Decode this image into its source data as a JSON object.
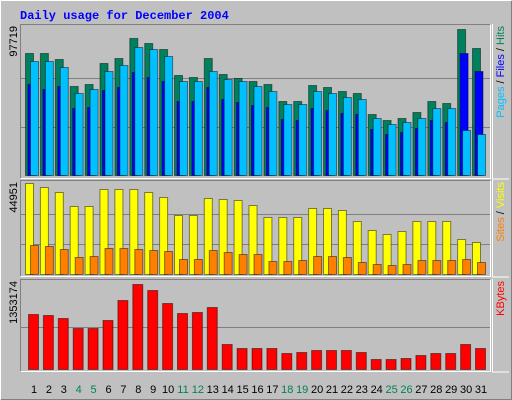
{
  "chart_data": [
    {
      "type": "bar",
      "title": "Daily usage for December 2004",
      "legend_separator": " / ",
      "ylim": [
        0,
        97719
      ],
      "yticks": [
        97719
      ],
      "gridlines": [
        32573,
        65146
      ],
      "series": [
        {
          "name": "Hits",
          "color": "#00805c",
          "values": [
            81877,
            81877,
            77915,
            60087,
            61408,
            75274,
            78576,
            91782,
            88481,
            84519,
            67351,
            66030,
            78576,
            68011,
            65370,
            63389,
            61408,
            50183,
            50183,
            60748,
            59427,
            56786,
            55465,
            40939,
            36977,
            38297,
            42259,
            50183,
            48202,
            97719,
            85179
          ]
        },
        {
          "name": "Files",
          "color": "#0000ff",
          "values": [
            61000,
            58000,
            60000,
            45000,
            46000,
            57000,
            59000,
            69000,
            66000,
            63000,
            50000,
            50000,
            59000,
            51000,
            49000,
            47000,
            46000,
            38000,
            37000,
            45000,
            44000,
            42000,
            41000,
            31000,
            28000,
            29000,
            32000,
            37000,
            36000,
            81877,
            69992
          ]
        },
        {
          "name": "Pages",
          "color": "#00c0ff",
          "values": [
            76595,
            76595,
            72633,
            55465,
            58106,
            69992,
            73954,
            85839,
            84519,
            79896,
            63389,
            63389,
            69992,
            64709,
            63389,
            60087,
            56786,
            47542,
            47542,
            56786,
            55465,
            52824,
            51503,
            38297,
            34336,
            35656,
            38297,
            44900,
            44900,
            30374,
            27733
          ]
        }
      ]
    },
    {
      "type": "bar",
      "legend_separator": " / ",
      "ylim": [
        0,
        44951
      ],
      "yticks": [
        44951
      ],
      "gridlines": [
        14984,
        29967
      ],
      "series": [
        {
          "name": "Visits",
          "color": "#ffff00",
          "values": [
            44951,
            43018,
            40601,
            33835,
            33835,
            42051,
            42051,
            42051,
            40601,
            38185,
            29484,
            29484,
            37701,
            37218,
            36735,
            34318,
            28518,
            28518,
            28518,
            32868,
            32868,
            31901,
            26584,
            21751,
            19817,
            21267,
            26584,
            26584,
            26584,
            17401,
            15951
          ]
        },
        {
          "name": "Sites",
          "color": "#ff8000",
          "values": [
            14501,
            14017,
            12567,
            8700,
            9184,
            13050,
            13050,
            12567,
            12084,
            11600,
            7734,
            7734,
            12084,
            11117,
            10150,
            10150,
            6767,
            6767,
            7250,
            9184,
            9184,
            8700,
            6284,
            5317,
            4834,
            5317,
            7250,
            7250,
            7250,
            7734,
            6284
          ]
        }
      ]
    },
    {
      "type": "bar",
      "ylim": [
        0,
        1353174
      ],
      "yticks": [
        1353174
      ],
      "gridlines": [
        676587
      ],
      "categories": [
        "1",
        "2",
        "3",
        "4",
        "5",
        "6",
        "7",
        "8",
        "9",
        "10",
        "11",
        "12",
        "13",
        "14",
        "15",
        "16",
        "17",
        "18",
        "19",
        "20",
        "21",
        "22",
        "23",
        "24",
        "25",
        "26",
        "27",
        "28",
        "29",
        "30",
        "31"
      ],
      "label_colors": [
        "#000000",
        "#000000",
        "#000000",
        "#00805c",
        "#00805c",
        "#000000",
        "#000000",
        "#000000",
        "#000000",
        "#000000",
        "#00805c",
        "#00805c",
        "#000000",
        "#000000",
        "#000000",
        "#000000",
        "#000000",
        "#00805c",
        "#00805c",
        "#000000",
        "#000000",
        "#000000",
        "#000000",
        "#000000",
        "#00805c",
        "#00805c",
        "#000000",
        "#000000",
        "#000000",
        "#000000",
        "#000000"
      ],
      "series": [
        {
          "name": "KBytes",
          "color": "#ff0000",
          "values": [
            876489,
            861112,
            814981,
            661211,
            661211,
            784227,
            1107144,
            1353174,
            1260914,
            1061013,
            891866,
            907243,
            984128,
            415179,
            353671,
            353671,
            353671,
            261409,
            276786,
            307540,
            307540,
            307540,
            276786,
            169147,
            169147,
            184524,
            230655,
            261409,
            261409,
            415179,
            338294
          ]
        }
      ]
    }
  ]
}
